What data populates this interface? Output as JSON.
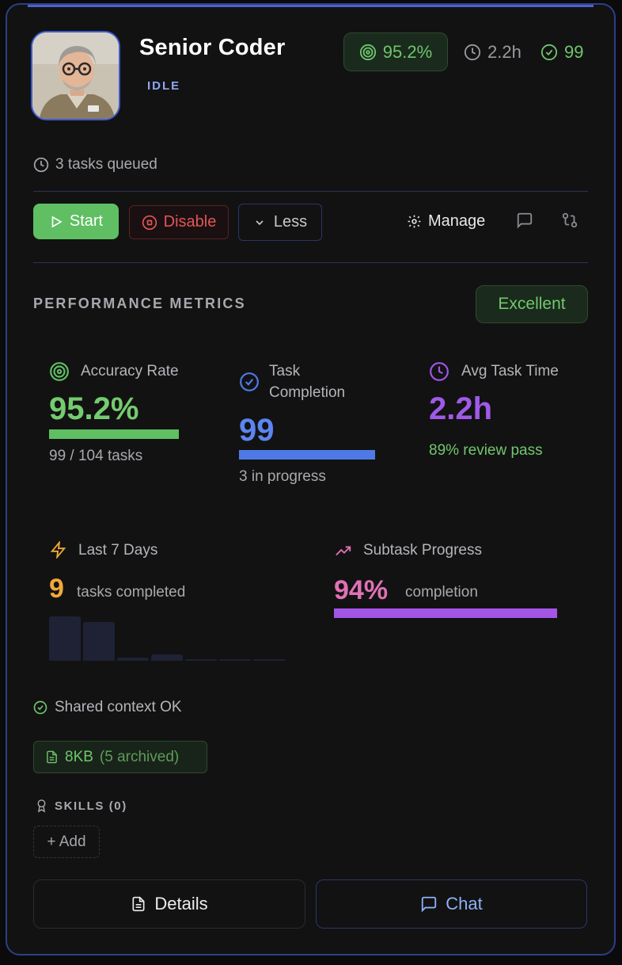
{
  "agent": {
    "name": "Senior Coder",
    "status": "IDLE",
    "avatar_icon": "avatar-portrait-icon"
  },
  "header_stats": {
    "accuracy": "95.2%",
    "avg_time": "2.2h",
    "completed": "99"
  },
  "queue": {
    "text": "3 tasks queued"
  },
  "actions": {
    "start": "Start",
    "disable": "Disable",
    "less": "Less",
    "manage": "Manage"
  },
  "metrics": {
    "section_title": "PERFORMANCE METRICS",
    "rating": "Excellent",
    "accuracy": {
      "label": "Accuracy Rate",
      "value": "95.2%",
      "sub": "99 / 104 tasks",
      "fill": 0.952
    },
    "completion": {
      "label": "Task Completion",
      "value": "99",
      "sub": "3 in progress",
      "fill": 1.0
    },
    "avg_time": {
      "label": "Avg Task Time",
      "value": "2.2h",
      "sub": "89% review pass"
    },
    "last7": {
      "label": "Last 7 Days",
      "value": "9",
      "sub": "tasks completed",
      "daily": [
        4,
        3.5,
        0.3,
        0.6,
        0.15,
        0.15,
        0.15
      ]
    },
    "subtask": {
      "label": "Subtask Progress",
      "value": "94%",
      "sub": "completion",
      "fill": 0.94
    }
  },
  "context": {
    "status": "Shared context OK",
    "size": "8KB",
    "archived": "(5 archived)"
  },
  "skills": {
    "title": "SKILLS (0)",
    "add_label": "+ Add"
  },
  "footer": {
    "details": "Details",
    "chat": "Chat"
  },
  "colors": {
    "accent_green": "#5fbf62",
    "accent_blue": "#4f7ae6",
    "accent_purple": "#a355e6",
    "accent_pink": "#e071b4",
    "accent_orange": "#f0a93a",
    "danger_red": "#e25555"
  }
}
